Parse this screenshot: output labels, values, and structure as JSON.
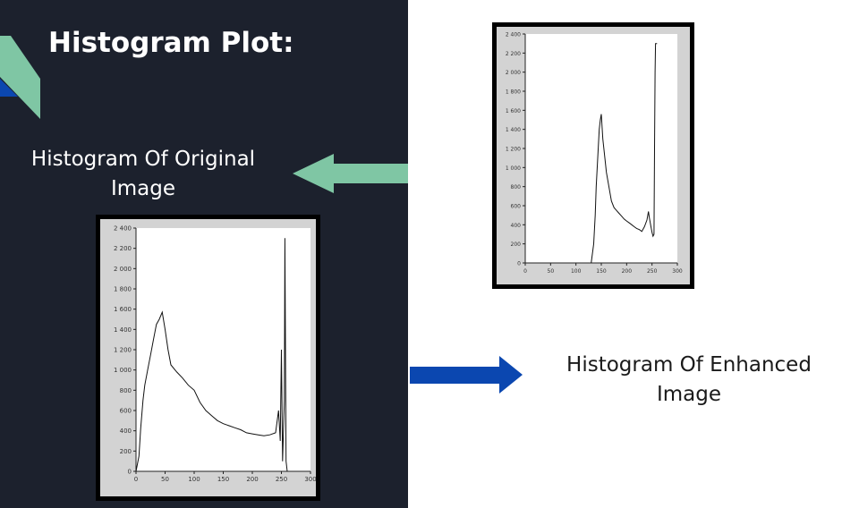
{
  "slide": {
    "title": "Histogram Plot:",
    "original_label": "Histogram Of Original Image",
    "enhanced_label": "Histogram Of Enhanced Image"
  },
  "colors": {
    "left_panel": "#1c212d",
    "accent_green": "#7fc6a4",
    "accent_blue": "#0b47b0",
    "plot_background": "#d3d3d3"
  },
  "chart_data": [
    {
      "type": "line",
      "title": "",
      "xlabel": "",
      "ylabel": "",
      "xlim": [
        0,
        300
      ],
      "ylim": [
        0,
        2400
      ],
      "x_ticks": [
        "0",
        "50",
        "100",
        "150",
        "200",
        "250",
        "300"
      ],
      "y_ticks": [
        "0",
        "200",
        "400",
        "600",
        "800",
        "1 000",
        "1 200",
        "1 400",
        "1 600",
        "1 800",
        "2 000",
        "2 200",
        "2 400"
      ],
      "grid": false,
      "series": [
        {
          "x": [
            0,
            5,
            8,
            12,
            15,
            20,
            25,
            30,
            35,
            40,
            45,
            50,
            55,
            60,
            70,
            80,
            90,
            100,
            110,
            120,
            130,
            140,
            150,
            160,
            170,
            180,
            190,
            200,
            210,
            220,
            230,
            240,
            245,
            248,
            250,
            252,
            255,
            256,
            258,
            260
          ],
          "y": [
            0,
            150,
            420,
            700,
            850,
            1000,
            1150,
            1300,
            1450,
            1500,
            1570,
            1400,
            1200,
            1050,
            980,
            920,
            850,
            800,
            680,
            600,
            550,
            500,
            470,
            450,
            430,
            410,
            380,
            370,
            360,
            350,
            360,
            380,
            600,
            300,
            1200,
            100,
            700,
            2300,
            100,
            0
          ]
        }
      ]
    },
    {
      "type": "line",
      "title": "",
      "xlabel": "",
      "ylabel": "",
      "xlim": [
        0,
        300
      ],
      "ylim": [
        0,
        2400
      ],
      "x_ticks": [
        "0",
        "50",
        "100",
        "150",
        "200",
        "250",
        "300"
      ],
      "y_ticks": [
        "0",
        "200",
        "400",
        "600",
        "800",
        "1 000",
        "1 200",
        "1 400",
        "1 600",
        "1 800",
        "2 000",
        "2 200",
        "2 400"
      ],
      "grid": false,
      "series": [
        {
          "x": [
            130,
            135,
            138,
            140,
            143,
            146,
            148,
            150,
            153,
            157,
            160,
            165,
            170,
            175,
            180,
            185,
            190,
            195,
            200,
            205,
            210,
            215,
            220,
            225,
            230,
            235,
            240,
            243,
            245,
            248,
            250,
            252,
            254,
            255,
            256,
            257,
            260
          ],
          "y": [
            0,
            200,
            500,
            800,
            1100,
            1400,
            1500,
            1560,
            1300,
            1100,
            950,
            800,
            650,
            580,
            550,
            520,
            490,
            460,
            440,
            420,
            400,
            380,
            360,
            350,
            330,
            380,
            450,
            540,
            470,
            380,
            320,
            280,
            300,
            1200,
            2000,
            2300,
            2300
          ]
        }
      ]
    }
  ]
}
